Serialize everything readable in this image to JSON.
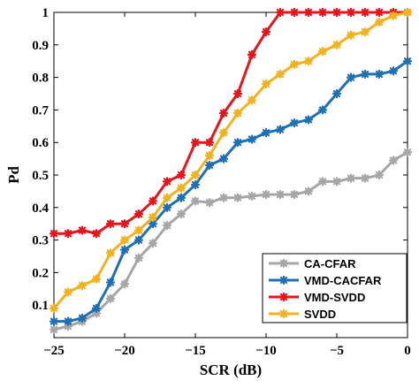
{
  "chart_data": {
    "type": "line",
    "xlabel": "SCR (dB)",
    "ylabel": "Pd",
    "xlim": [
      -25,
      0
    ],
    "ylim": [
      0,
      1
    ],
    "xticks": [
      -25,
      -20,
      -15,
      -10,
      -5,
      0
    ],
    "xtick_labels": [
      "−25",
      "−20",
      "−15",
      "−10",
      "−5",
      "0"
    ],
    "yticks": [
      0.1,
      0.2,
      0.3,
      0.4,
      0.5,
      0.6,
      0.7,
      0.8,
      0.9,
      1
    ],
    "ytick_labels": [
      "0.1",
      "0.2",
      "0.3",
      "0.4",
      "0.5",
      "0.6",
      "0.7",
      "0.8",
      "0.9",
      "1"
    ],
    "grid": false,
    "legend_position": "bottom-right",
    "x": [
      -25,
      -24,
      -23,
      -22,
      -21,
      -20,
      -19,
      -18,
      -17,
      -16,
      -15,
      -14,
      -13,
      -12,
      -11,
      -10,
      -9,
      -8,
      -7,
      -6,
      -5,
      -4,
      -3,
      -2,
      -1,
      0
    ],
    "series": [
      {
        "name": "CA-CFAR",
        "color": "#a6a6a6",
        "values": [
          0.025,
          0.035,
          0.05,
          0.075,
          0.12,
          0.165,
          0.245,
          0.29,
          0.345,
          0.38,
          0.42,
          0.415,
          0.43,
          0.43,
          0.435,
          0.44,
          0.44,
          0.44,
          0.45,
          0.48,
          0.48,
          0.49,
          0.49,
          0.5,
          0.545,
          0.57
        ]
      },
      {
        "name": "VMD-CACFAR",
        "color": "#1f6fb5",
        "values": [
          0.05,
          0.05,
          0.06,
          0.09,
          0.17,
          0.27,
          0.3,
          0.35,
          0.4,
          0.43,
          0.47,
          0.53,
          0.55,
          0.6,
          0.61,
          0.63,
          0.64,
          0.66,
          0.67,
          0.7,
          0.75,
          0.8,
          0.81,
          0.81,
          0.82,
          0.85
        ]
      },
      {
        "name": "VMD-SVDD",
        "color": "#e8141c",
        "values": [
          0.32,
          0.32,
          0.33,
          0.32,
          0.35,
          0.35,
          0.38,
          0.42,
          0.48,
          0.5,
          0.6,
          0.6,
          0.69,
          0.75,
          0.87,
          0.94,
          1,
          1,
          1,
          1,
          1,
          1,
          1,
          1,
          1,
          1
        ]
      },
      {
        "name": "SVDD",
        "color": "#f2b21d",
        "values": [
          0.09,
          0.14,
          0.16,
          0.18,
          0.26,
          0.3,
          0.33,
          0.37,
          0.43,
          0.46,
          0.5,
          0.56,
          0.63,
          0.69,
          0.73,
          0.78,
          0.81,
          0.84,
          0.85,
          0.88,
          0.9,
          0.93,
          0.94,
          0.97,
          0.99,
          1
        ]
      }
    ]
  }
}
